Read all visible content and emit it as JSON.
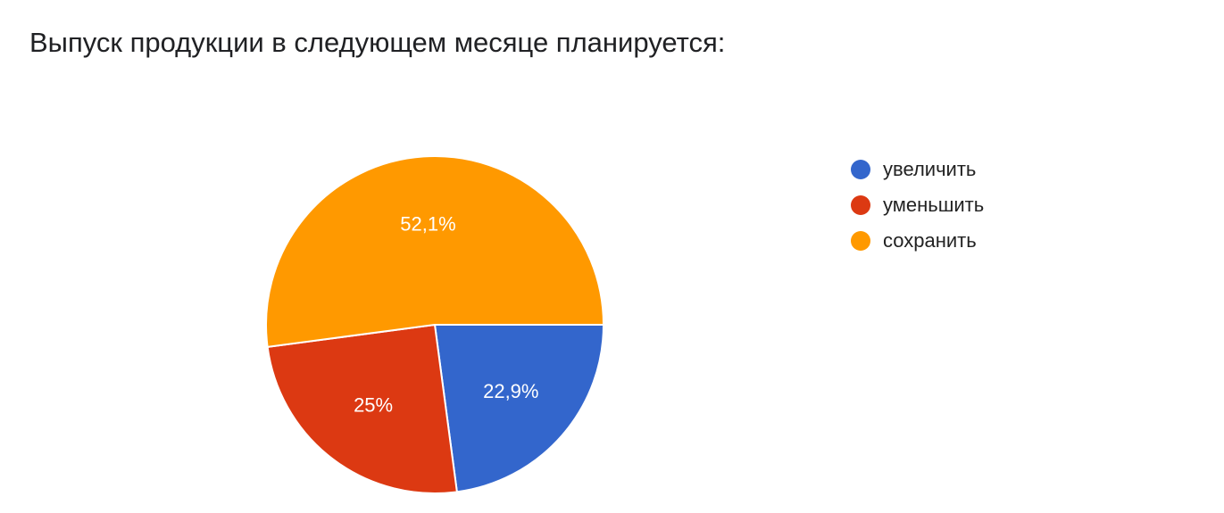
{
  "chart_data": {
    "type": "pie",
    "title": "Выпуск продукции в следующем месяце планируется:",
    "slices": [
      {
        "label": "увеличить",
        "value": 22.9,
        "display": "22,9%",
        "color": "#3366cc"
      },
      {
        "label": "уменьшить",
        "value": 25,
        "display": "25%",
        "color": "#dc3912"
      },
      {
        "label": "сохранить",
        "value": 52.1,
        "display": "52,1%",
        "color": "#ff9900"
      }
    ],
    "legend_position": "right"
  }
}
